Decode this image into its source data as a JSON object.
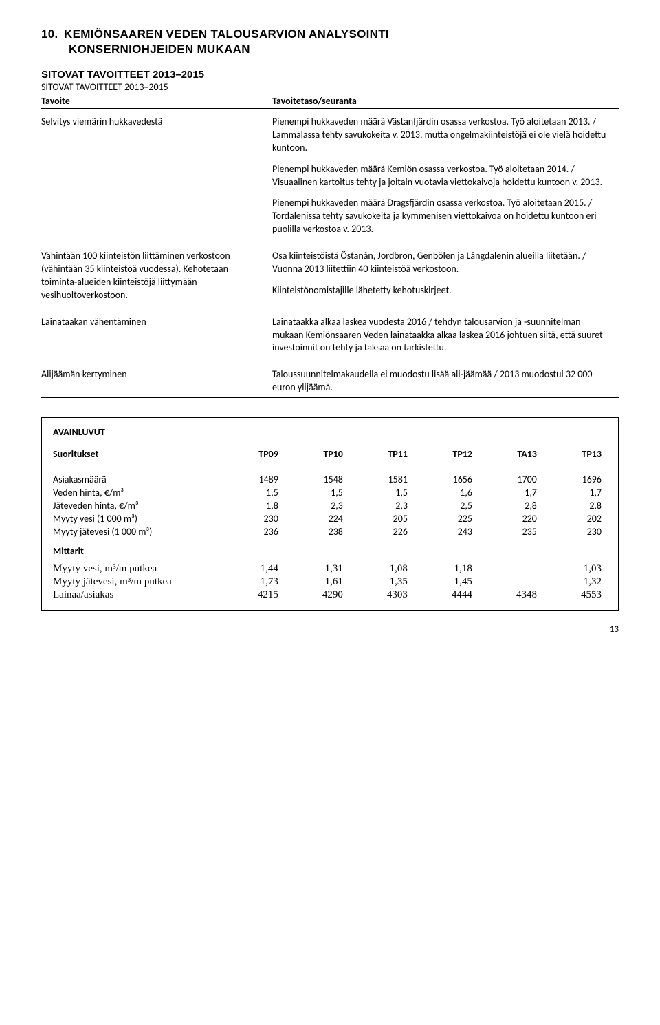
{
  "section": {
    "number": "10.",
    "title": "KEMIÖNSAAREN VEDEN TALOUSARVION ANALYSOINTI",
    "subtitle": "KONSERNIOHJEIDEN MUKAAN"
  },
  "sitovat": {
    "heading_big": "SITOVAT TAVOITTEET 2013–2015",
    "heading_small": "SITOVAT TAVOITTEET 2013–2015",
    "col_left": "Tavoite",
    "col_right": "Tavoitetaso/seuranta",
    "rows": [
      {
        "left": "Selvitys viemärin hukkavedestä",
        "right": [
          "Pienempi hukkaveden määrä Västanfjärdin osassa verkostoa. Työ aloitetaan 2013. / Lammalassa tehty savukokeita v. 2013, mutta ongelmakiinteistöjä ei ole vielä hoidettu kuntoon.",
          "Pienempi hukkaveden määrä Kemiön osassa verkostoa. Työ aloitetaan 2014. / Visuaalinen kartoitus tehty ja joitain vuotavia viettokaivoja hoidettu kuntoon v. 2013.",
          "Pienempi hukkaveden määrä Dragsfjärdin osassa verkostoa. Työ aloitetaan 2015. / Tordalenissa tehty savukokeita ja kymmenisen viettokaivoa on hoidettu kuntoon eri puolilla verkostoa v. 2013."
        ]
      },
      {
        "left": "Vähintään 100 kiinteistön liittäminen verkostoon (vähintään 35 kiinteistöä vuodessa). Kehotetaan toiminta-alueiden kiinteistöjä liittymään vesihuoltoverkostoon.",
        "right": [
          "Osa kiinteistöistä Östanån, Jordbron, Genbölen ja Långdalenin alueilla liitetään. / Vuonna 2013 liitettiin 40 kiinteistöä verkostoon.",
          "Kiinteistönomistajille lähetetty kehotuskirjeet."
        ]
      },
      {
        "left": "Lainataakan vähentäminen",
        "right": [
          "Lainataakka alkaa laskea vuodesta 2016 / tehdyn talousarvion ja -suunnitelman mukaan Kemiönsaaren Veden lainataakka alkaa laskea 2016 johtuen siitä, että suuret investoinnit on tehty ja taksaa on tarkistettu."
        ]
      },
      {
        "left": "Alijäämän kertyminen",
        "right": [
          "Taloussuunnitelmakaudella ei muodostu lisää ali-jäämää / 2013 muodostui 32 000 euron ylijäämä."
        ]
      }
    ]
  },
  "avainluvut": {
    "title": "AVAINLUVUT",
    "suoritukset_hdr": "Suoritukset",
    "cols": [
      "TP09",
      "TP10",
      "TP11",
      "TP12",
      "TA13",
      "TP13"
    ],
    "rows": [
      {
        "label": "Asiakasmäärä",
        "vals": [
          "1489",
          "1548",
          "1581",
          "1656",
          "1700",
          "1696"
        ]
      },
      {
        "label": "Veden hinta, €/m³",
        "vals": [
          "1,5",
          "1,5",
          "1,5",
          "1,6",
          "1,7",
          "1,7"
        ]
      },
      {
        "label": "Jäteveden hinta, €/m³",
        "vals": [
          "1,8",
          "2,3",
          "2,3",
          "2,5",
          "2,8",
          "2,8"
        ]
      },
      {
        "label": "Myyty vesi (1 000 m³)",
        "vals": [
          "230",
          "224",
          "205",
          "225",
          "220",
          "202"
        ]
      },
      {
        "label": "Myyty jätevesi (1 000 m³)",
        "vals": [
          "236",
          "238",
          "226",
          "243",
          "235",
          "230"
        ]
      }
    ],
    "mittarit_hdr": "Mittarit",
    "mittarit_rows": [
      {
        "label": "Myyty vesi, m³/m putkea",
        "vals": [
          "1,44",
          "1,31",
          "1,08",
          "1,18",
          "",
          "1,03"
        ]
      },
      {
        "label": "Myyty jätevesi, m³/m putkea",
        "vals": [
          "1,73",
          "1,61",
          "1,35",
          "1,45",
          "",
          "1,32"
        ]
      },
      {
        "label": "Lainaa/asiakas",
        "vals": [
          "4215",
          "4290",
          "4303",
          "4444",
          "4348",
          "4553"
        ]
      }
    ]
  },
  "page_number": "13"
}
